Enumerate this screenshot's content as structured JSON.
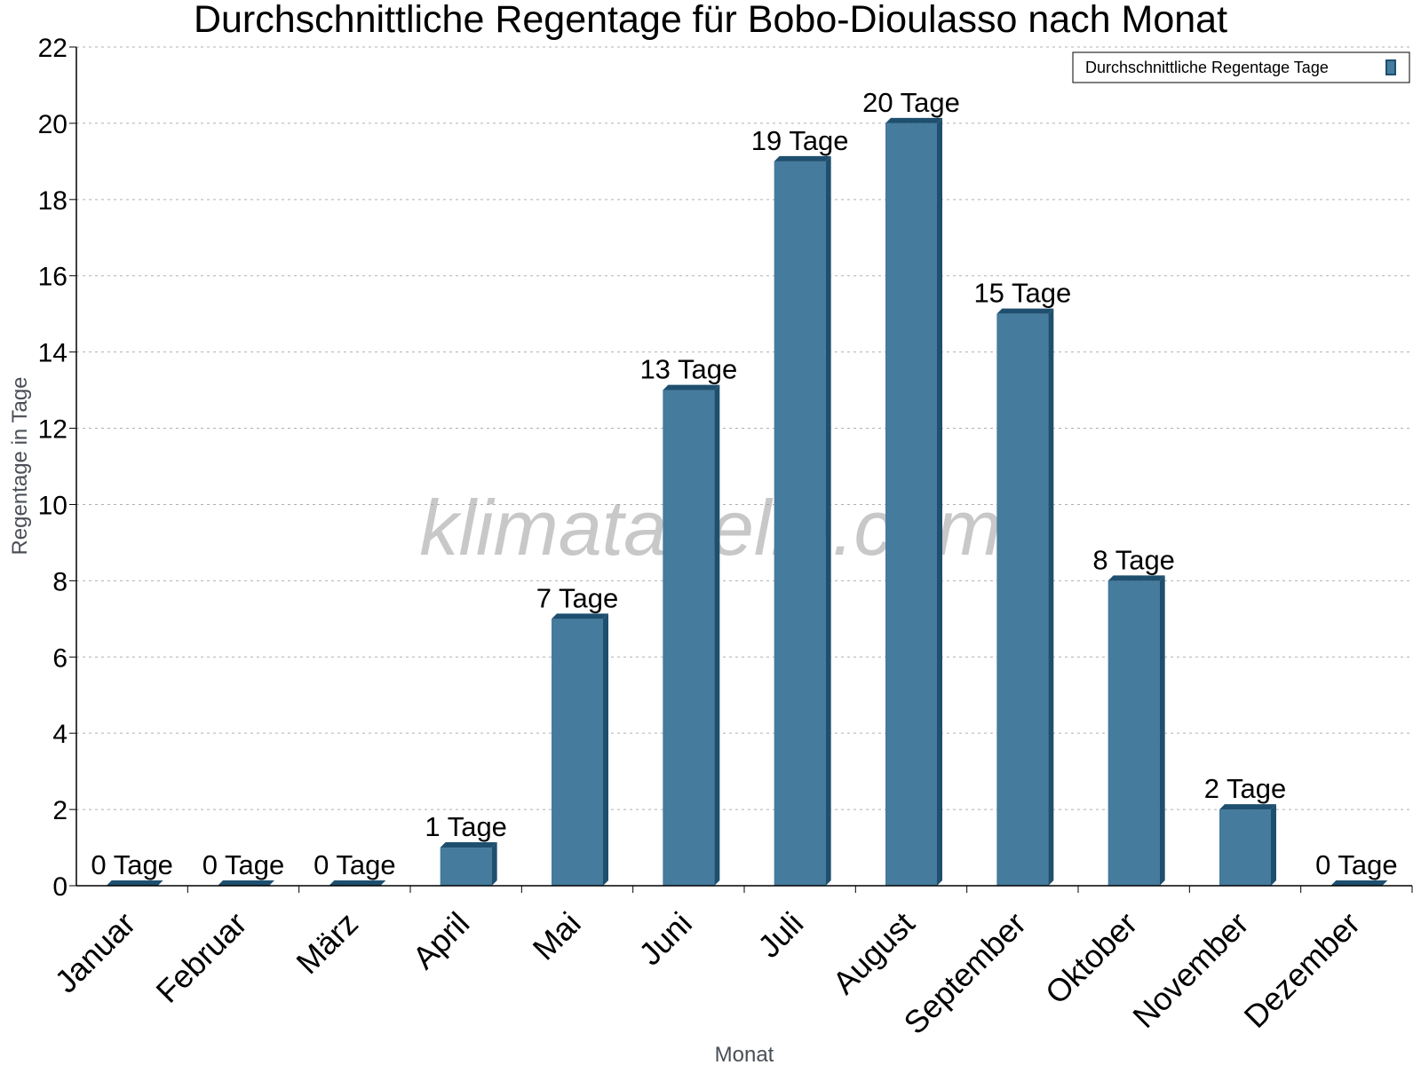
{
  "chart_data": {
    "type": "bar",
    "title": "Durchschnittliche Regentage für Bobo-Dioulasso nach Monat",
    "xlabel": "Monat",
    "ylabel": "Regentage in Tage",
    "categories": [
      "Januar",
      "Februar",
      "März",
      "April",
      "Mai",
      "Juni",
      "Juli",
      "August",
      "September",
      "Oktober",
      "November",
      "Dezember"
    ],
    "series": [
      {
        "name": "Durchschnittliche Regentage Tage",
        "values": [
          0,
          0,
          0,
          1,
          7,
          13,
          19,
          20,
          15,
          8,
          2,
          0
        ],
        "labels": [
          "0 Tage",
          "0 Tage",
          "0 Tage",
          "1 Tage",
          "7 Tage",
          "13 Tage",
          "19 Tage",
          "20 Tage",
          "15 Tage",
          "8 Tage",
          "2 Tage",
          "0 Tage"
        ]
      }
    ],
    "ylim": [
      0,
      22
    ],
    "yticks": [
      0,
      2,
      4,
      6,
      8,
      10,
      12,
      14,
      16,
      18,
      20,
      22
    ],
    "grid": true,
    "legend_position": "top-right",
    "bar_color": "#457b9d",
    "bar_side_color": "#1e4f6e"
  },
  "watermark": "klimatabelle.com"
}
